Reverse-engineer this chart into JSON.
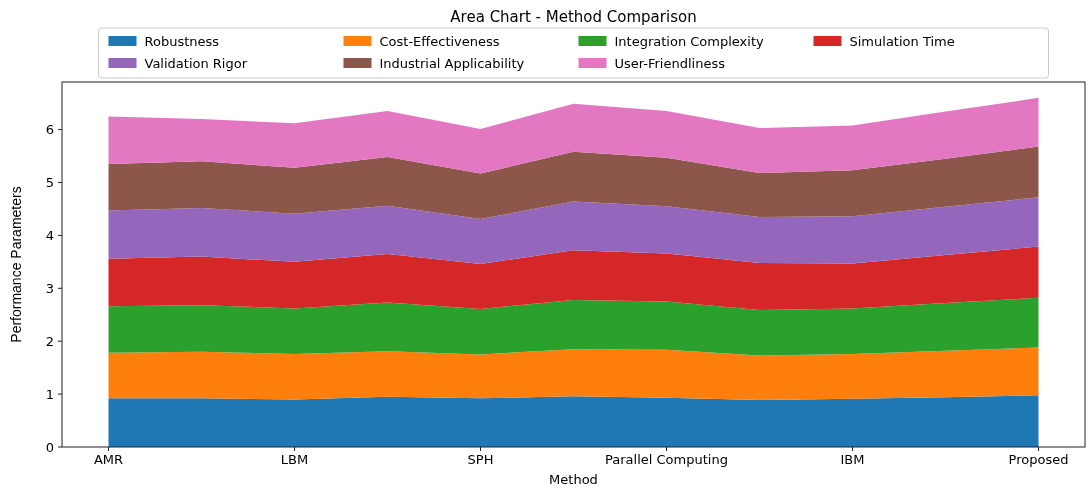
{
  "chart_data": {
    "type": "area",
    "title": "Area Chart - Method Comparison",
    "xlabel": "Method",
    "ylabel": "Performance Parameters",
    "categories": [
      "AMR",
      null,
      "LBM",
      null,
      "SPH",
      null,
      "Parallel Computing",
      null,
      "IBM",
      null,
      "Proposed"
    ],
    "stacked": true,
    "ylim": [
      0,
      6.9
    ],
    "yticks": [
      0,
      1,
      2,
      3,
      4,
      5,
      6
    ],
    "grid": false,
    "legend": "top",
    "series": [
      {
        "name": "Robustness",
        "color": "#1f77b4",
        "values": [
          0.92,
          0.92,
          0.9,
          0.95,
          0.92,
          0.96,
          0.93,
          0.89,
          0.91,
          0.94,
          0.98
        ]
      },
      {
        "name": "Cost-Effectiveness",
        "color": "#ff7f0e",
        "values": [
          0.86,
          0.88,
          0.86,
          0.86,
          0.83,
          0.89,
          0.91,
          0.84,
          0.85,
          0.88,
          0.9
        ]
      },
      {
        "name": "Integration Complexity",
        "color": "#2ca02c",
        "values": [
          0.88,
          0.88,
          0.86,
          0.92,
          0.86,
          0.93,
          0.91,
          0.86,
          0.86,
          0.9,
          0.94
        ]
      },
      {
        "name": "Simulation Time",
        "color": "#d62728",
        "values": [
          0.9,
          0.92,
          0.88,
          0.92,
          0.85,
          0.94,
          0.91,
          0.89,
          0.85,
          0.91,
          0.97
        ]
      },
      {
        "name": "Validation Rigor",
        "color": "#9467bd",
        "values": [
          0.91,
          0.92,
          0.91,
          0.91,
          0.85,
          0.92,
          0.89,
          0.87,
          0.89,
          0.91,
          0.93
        ]
      },
      {
        "name": "Industrial Applicability",
        "color": "#8c564b",
        "values": [
          0.88,
          0.88,
          0.87,
          0.92,
          0.86,
          0.94,
          0.92,
          0.83,
          0.87,
          0.91,
          0.96
        ]
      },
      {
        "name": "User-Friendliness",
        "color": "#e377c2",
        "values": [
          0.9,
          0.8,
          0.84,
          0.87,
          0.84,
          0.91,
          0.88,
          0.85,
          0.85,
          0.89,
          0.92
        ]
      }
    ]
  }
}
